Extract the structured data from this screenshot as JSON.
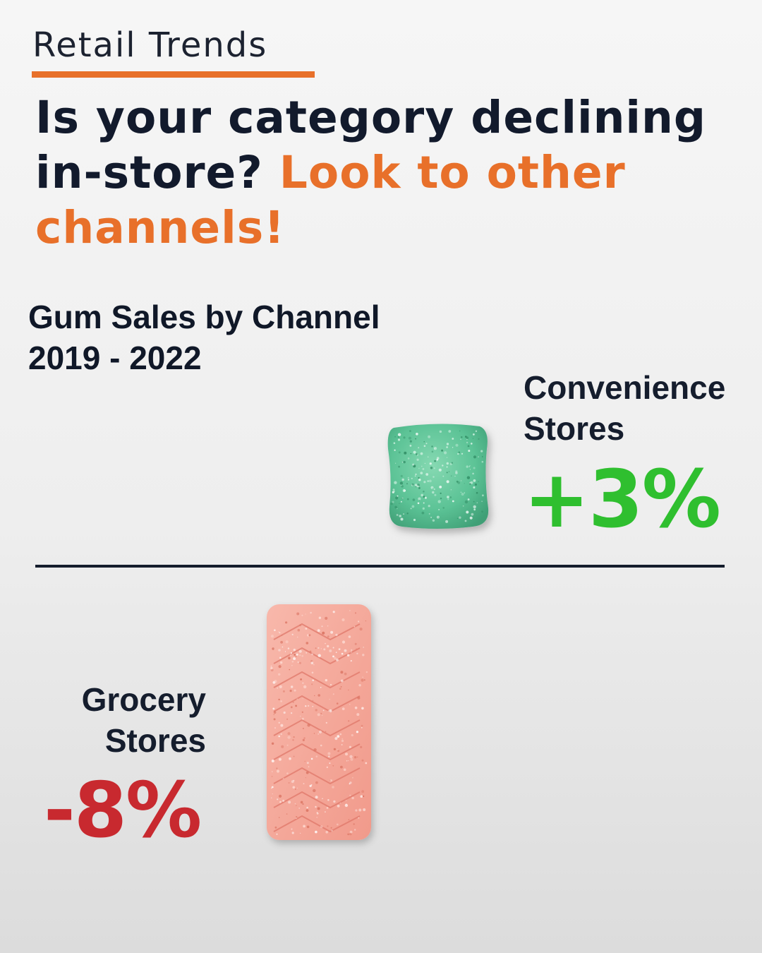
{
  "header": {
    "eyebrow": "Retail Trends",
    "headline_dark": "Is your category declining in-store?",
    "headline_accent": "Look to other channels!"
  },
  "colors": {
    "accent_orange": "#e8702a",
    "positive_green": "#2fbf2f",
    "negative_red": "#c8292f",
    "text_dark": "#121a2c",
    "gum_green": "#62c79b",
    "gum_pink": "#f5a99c"
  },
  "chart_data": {
    "type": "bar",
    "title": "Gum Sales by Channel",
    "subtitle": "2019 - 2022",
    "categories": [
      "Convenience Stores",
      "Grocery Stores"
    ],
    "values": [
      3,
      -8
    ],
    "value_labels": [
      "+3%",
      "-8%"
    ],
    "unit": "%",
    "grid": false,
    "category_lines": {
      "convenience": [
        "Convenience",
        "Stores"
      ],
      "grocery": [
        "Grocery",
        "Stores"
      ]
    }
  }
}
